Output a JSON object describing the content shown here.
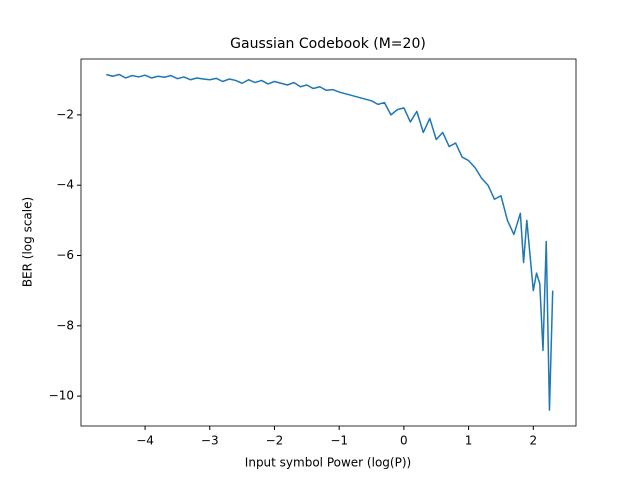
{
  "chart_data": {
    "type": "line",
    "title": "Gaussian Codebook (M=20)",
    "xlabel": "Input symbol Power (log(P))",
    "ylabel": "BER (log scale)",
    "x": [
      -4.6,
      -4.5,
      -4.4,
      -4.3,
      -4.2,
      -4.1,
      -4.0,
      -3.9,
      -3.8,
      -3.7,
      -3.6,
      -3.5,
      -3.4,
      -3.3,
      -3.2,
      -3.1,
      -3.0,
      -2.9,
      -2.8,
      -2.7,
      -2.6,
      -2.5,
      -2.4,
      -2.3,
      -2.2,
      -2.1,
      -2.0,
      -1.9,
      -1.8,
      -1.7,
      -1.6,
      -1.5,
      -1.4,
      -1.3,
      -1.2,
      -1.1,
      -1.0,
      -0.9,
      -0.8,
      -0.7,
      -0.6,
      -0.5,
      -0.4,
      -0.3,
      -0.2,
      -0.1,
      0.0,
      0.1,
      0.2,
      0.3,
      0.4,
      0.5,
      0.6,
      0.7,
      0.8,
      0.9,
      1.0,
      1.1,
      1.2,
      1.3,
      1.4,
      1.5,
      1.6,
      1.7,
      1.8,
      1.85,
      1.9,
      1.95,
      2.0,
      2.05,
      2.1,
      2.15,
      2.2,
      2.25,
      2.3
    ],
    "series": [
      {
        "color": "#1f77b4",
        "values": [
          -0.85,
          -0.9,
          -0.85,
          -0.95,
          -0.88,
          -0.92,
          -0.87,
          -0.95,
          -0.9,
          -0.93,
          -0.88,
          -0.97,
          -0.92,
          -1.0,
          -0.95,
          -0.98,
          -1.0,
          -0.96,
          -1.05,
          -0.98,
          -1.02,
          -1.1,
          -1.0,
          -1.08,
          -1.02,
          -1.12,
          -1.05,
          -1.1,
          -1.15,
          -1.08,
          -1.2,
          -1.15,
          -1.25,
          -1.2,
          -1.3,
          -1.28,
          -1.35,
          -1.4,
          -1.45,
          -1.5,
          -1.55,
          -1.6,
          -1.7,
          -1.65,
          -2.0,
          -1.85,
          -1.8,
          -2.2,
          -1.9,
          -2.5,
          -2.1,
          -2.7,
          -2.5,
          -2.9,
          -2.8,
          -3.2,
          -3.3,
          -3.5,
          -3.8,
          -4.0,
          -4.4,
          -4.3,
          -5.0,
          -5.4,
          -4.8,
          -6.2,
          -5.0,
          -6.0,
          -7.0,
          -6.5,
          -6.8,
          -8.7,
          -5.6,
          -10.4,
          -7.0
        ]
      }
    ],
    "xlim": [
      -4.99,
      2.66
    ],
    "ylim": [
      -10.85,
      -0.41
    ],
    "xticks": [
      {
        "value": -4,
        "label": "−4"
      },
      {
        "value": -3,
        "label": "−3"
      },
      {
        "value": -2,
        "label": "−2"
      },
      {
        "value": -1,
        "label": "−1"
      },
      0,
      1,
      2
    ],
    "yticks": [
      {
        "value": -2,
        "label": "−2"
      },
      {
        "value": -4,
        "label": "−4"
      },
      {
        "value": -6,
        "label": "−6"
      },
      {
        "value": -8,
        "label": "−8"
      },
      {
        "value": -10,
        "label": "−10"
      }
    ]
  }
}
